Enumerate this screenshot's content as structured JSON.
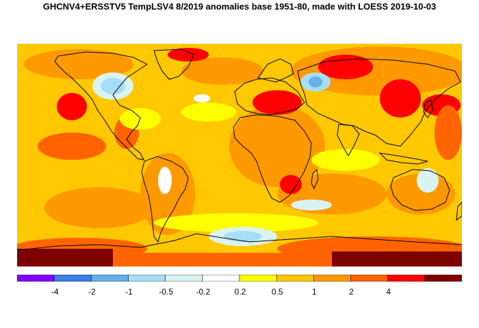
{
  "title": "GHCNV4+ERSSTV5 TempLSV4 8/2019 anomalies base 1951-80, made with LOESS 2019-10-03",
  "legend": {
    "bins": [
      {
        "color": "#7f00ff"
      },
      {
        "color": "#3a7ee6"
      },
      {
        "color": "#68b0ea"
      },
      {
        "color": "#a6def5"
      },
      {
        "color": "#d9f4f2"
      },
      {
        "color": "#ffffff"
      },
      {
        "color": "#ffff00"
      },
      {
        "color": "#ffc800"
      },
      {
        "color": "#ff9900"
      },
      {
        "color": "#ff6400"
      },
      {
        "color": "#ff0000"
      },
      {
        "color": "#7f0000"
      }
    ],
    "breaks": [
      "-4",
      "-2",
      "-1",
      "-0.5",
      "-0.2",
      "0.2",
      "0.5",
      "1",
      "2",
      "4"
    ]
  },
  "colors": {
    "ocean_base": "#ffc800",
    "warm": "#ff9900",
    "hot": "#ff6400",
    "very_hot": "#ff0000",
    "extreme": "#7f0000",
    "mild": "#ffff00",
    "neutral": "#ffffff",
    "cool": "#d9f4f2",
    "cold": "#a6def5",
    "colder": "#68b0ea",
    "coast_line": "#000000"
  }
}
